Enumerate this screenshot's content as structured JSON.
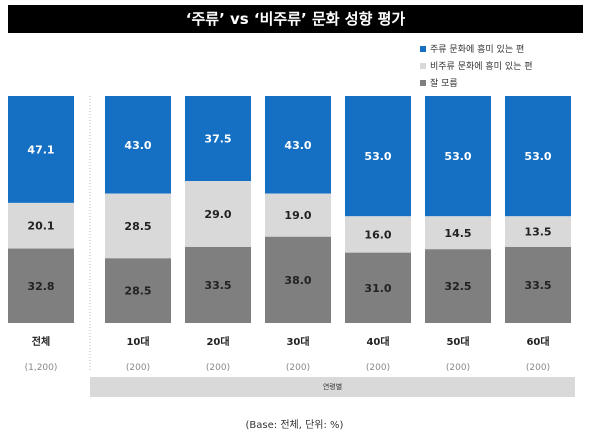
{
  "title": "‘주류’ vs ‘비주류’ 문화 성향 평가",
  "legend": [
    {
      "label": "주류 문화에 흥미 있는 편",
      "color": "#1570c4"
    },
    {
      "label": "비주류 문화에 흥미 있는 편",
      "color": "#d9d9d9"
    },
    {
      "label": "잘 모름",
      "color": "#7f7f7f"
    }
  ],
  "group_label": "연령별",
  "base_note": "(Base: 전체, 단위: %)",
  "chart_data": {
    "type": "bar",
    "stacked": true,
    "categories": [
      "전체",
      "10대",
      "20대",
      "30대",
      "40대",
      "50대",
      "60대"
    ],
    "sample_sizes": [
      "(1,200)",
      "(200)",
      "(200)",
      "(200)",
      "(200)",
      "(200)",
      "(200)"
    ],
    "series": [
      {
        "name": "주류 문화에 흥미 있는 편",
        "color": "#1570c4",
        "label_color": "#ffffff",
        "values": [
          47.1,
          43.0,
          37.5,
          43.0,
          53.0,
          53.0,
          53.0
        ]
      },
      {
        "name": "비주류 문화에 흥미 있는 편",
        "color": "#d9d9d9",
        "label_color": "#222222",
        "values": [
          20.1,
          28.5,
          29.0,
          19.0,
          16.0,
          14.5,
          13.5
        ]
      },
      {
        "name": "잘 모름",
        "color": "#7f7f7f",
        "label_color": "#222222",
        "values": [
          32.8,
          28.5,
          33.5,
          38.0,
          31.0,
          32.5,
          33.5
        ]
      }
    ],
    "ylim": [
      0,
      100
    ],
    "grid": false,
    "legend_position": "top-right"
  }
}
